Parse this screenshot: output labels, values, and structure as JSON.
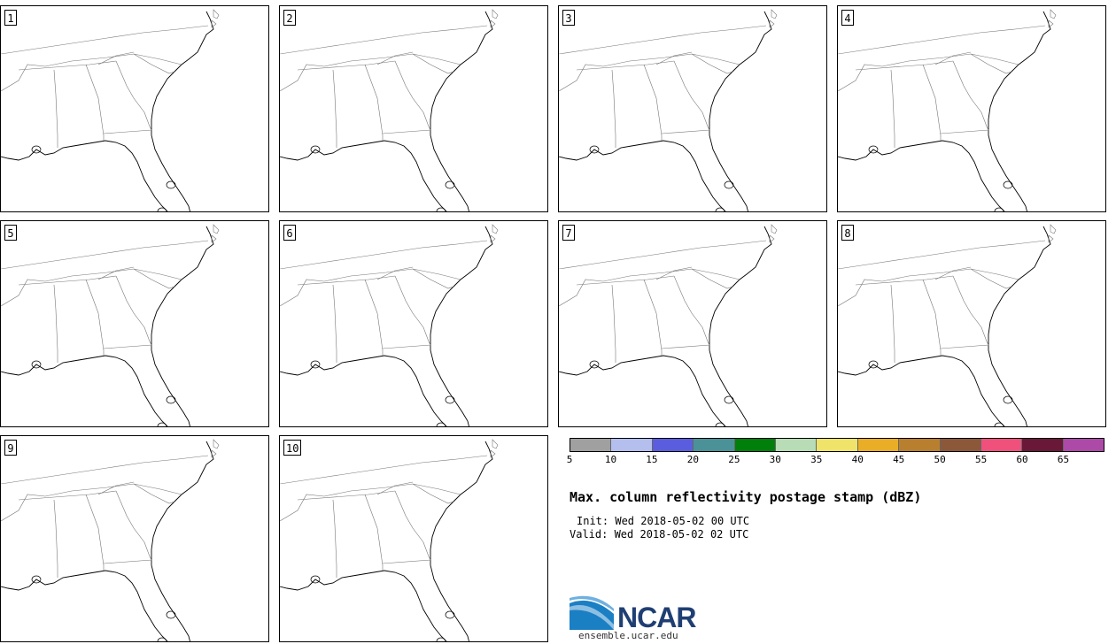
{
  "panels": [
    {
      "label": "1"
    },
    {
      "label": "2"
    },
    {
      "label": "3"
    },
    {
      "label": "4"
    },
    {
      "label": "5"
    },
    {
      "label": "6"
    },
    {
      "label": "7"
    },
    {
      "label": "8"
    },
    {
      "label": "9"
    },
    {
      "label": "10"
    }
  ],
  "colorbar": {
    "colors": [
      "#a0a0a0",
      "#b4bfee",
      "#5a5ede",
      "#4a9298",
      "#00800a",
      "#b8dcb6",
      "#efe36a",
      "#eaae26",
      "#b8802e",
      "#8c583a",
      "#ef507c",
      "#6a1838",
      "#ad4aa8"
    ],
    "tick_labels": [
      "5",
      "10",
      "15",
      "20",
      "25",
      "30",
      "35",
      "40",
      "45",
      "50",
      "55",
      "60",
      "65"
    ]
  },
  "title": "Max. column reflectivity postage stamp (dBZ)",
  "init": "Init: Wed 2018-05-02 00 UTC",
  "valid": "Valid: Wed 2018-05-02 02 UTC",
  "logo": {
    "name": "NCAR"
  },
  "website": "ensemble.ucar.edu"
}
